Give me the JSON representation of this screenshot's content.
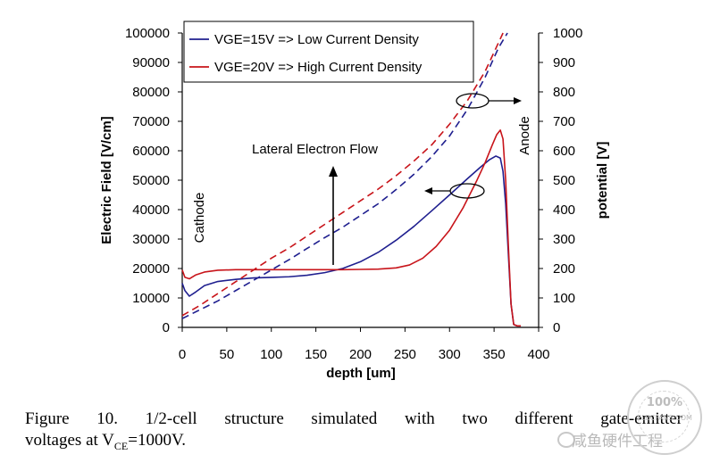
{
  "chart_data": {
    "type": "line",
    "xlabel": "depth [um]",
    "ylabel_left": "Electric Field [V/cm]",
    "ylabel_right": "potential [V]",
    "xlim": [
      0,
      400
    ],
    "ylim_left": [
      0,
      100000
    ],
    "ylim_right": [
      0,
      1000
    ],
    "x_ticks": [
      "0",
      "50",
      "100",
      "150",
      "200",
      "250",
      "300",
      "350",
      "400"
    ],
    "y_ticks_left": [
      "0",
      "10000",
      "20000",
      "30000",
      "40000",
      "50000",
      "60000",
      "70000",
      "80000",
      "90000",
      "100000"
    ],
    "y_ticks_right": [
      "0",
      "100",
      "200",
      "300",
      "400",
      "500",
      "600",
      "700",
      "800",
      "900",
      "1000"
    ],
    "grid": false,
    "legend_position": "top-left",
    "series": [
      {
        "name": "VGE=15V => Low Current Density",
        "color": "#1f1f8f",
        "field": {
          "x": [
            0,
            3,
            8,
            15,
            25,
            40,
            60,
            80,
            100,
            120,
            140,
            160,
            180,
            200,
            220,
            240,
            260,
            280,
            300,
            320,
            335,
            345,
            352,
            357,
            360,
            363,
            366,
            369,
            372,
            376,
            380
          ],
          "y": [
            15000,
            12500,
            10600,
            12000,
            14200,
            15600,
            16300,
            16800,
            17000,
            17200,
            17700,
            18600,
            20000,
            22300,
            25500,
            29600,
            34300,
            39600,
            45000,
            50500,
            54500,
            57000,
            58200,
            57500,
            53000,
            42000,
            25000,
            8000,
            1000,
            500,
            500
          ]
        },
        "potential": {
          "x": [
            0,
            20,
            40,
            60,
            80,
            100,
            120,
            140,
            160,
            180,
            200,
            220,
            240,
            260,
            280,
            300,
            320,
            340,
            355,
            365
          ],
          "y": [
            30,
            60,
            90,
            125,
            160,
            195,
            230,
            268,
            305,
            340,
            380,
            420,
            468,
            520,
            580,
            650,
            740,
            850,
            950,
            1000
          ]
        }
      },
      {
        "name": "VGE=20V => High Current Density",
        "color": "#c8141a",
        "field": {
          "x": [
            0,
            3,
            8,
            15,
            25,
            40,
            60,
            80,
            100,
            120,
            140,
            160,
            180,
            200,
            220,
            240,
            255,
            270,
            285,
            300,
            315,
            330,
            340,
            348,
            353,
            357,
            360,
            363,
            366,
            369,
            372,
            376,
            380
          ],
          "y": [
            19500,
            17000,
            16500,
            17800,
            18800,
            19400,
            19600,
            19600,
            19600,
            19600,
            19600,
            19600,
            19600,
            19700,
            19800,
            20200,
            21200,
            23500,
            27500,
            33000,
            40500,
            49500,
            56000,
            62000,
            65500,
            67000,
            64000,
            50000,
            28000,
            8000,
            1000,
            500,
            500
          ]
        },
        "potential": {
          "x": [
            0,
            20,
            40,
            60,
            80,
            100,
            120,
            140,
            160,
            180,
            200,
            220,
            240,
            260,
            280,
            300,
            320,
            340,
            360
          ],
          "y": [
            40,
            75,
            115,
            155,
            195,
            235,
            270,
            310,
            350,
            390,
            430,
            470,
            515,
            565,
            620,
            690,
            770,
            870,
            1000
          ]
        }
      }
    ],
    "annotations": {
      "lateral_flow": "Lateral Electron Flow",
      "cathode": "Cathode",
      "anode": "Anode"
    }
  },
  "caption": {
    "line1": "Figure 10. 1/2-cell structure simulated with two different gate-emitter",
    "line2_prefix": "voltages at V",
    "line2_sub": "CE",
    "line2_suffix": "=1000V."
  },
  "watermark": {
    "text": "咸鱼硬件工程",
    "stamp_pct": "100%",
    "stamp_site": "ELECFANS.COM"
  }
}
